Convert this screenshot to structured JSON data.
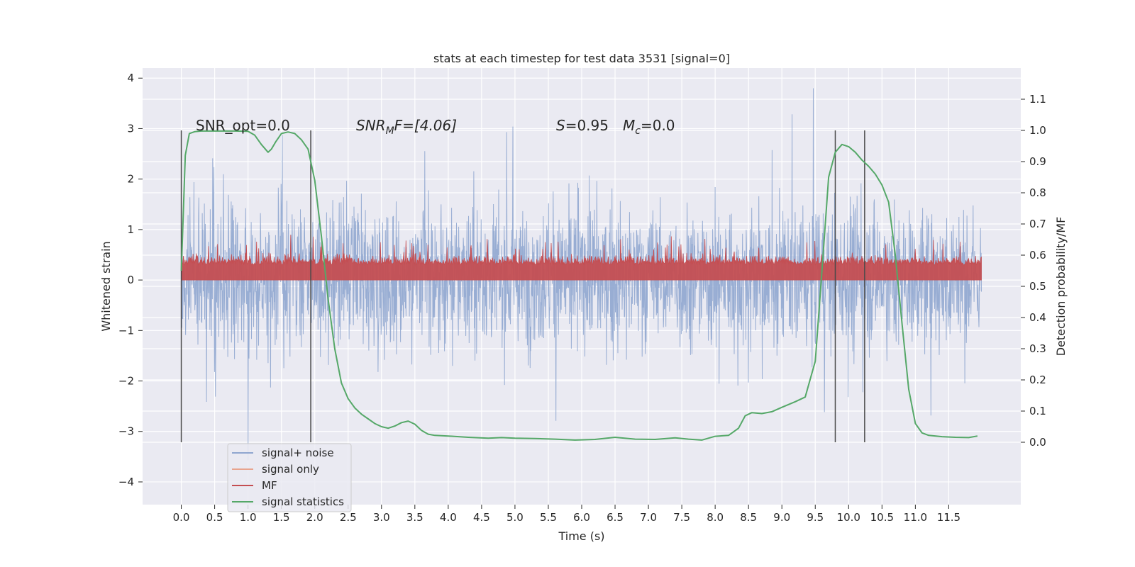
{
  "chart_data": {
    "type": "line",
    "title": "stats at each timestep for test data 3531 [signal=0]",
    "xlabel": "Time (s)",
    "ylabel": "Whitened strain",
    "ylabel_right": "Detection probability/MF",
    "xlim": [
      -0.58,
      12.58
    ],
    "ylim": [
      -4.45,
      4.2
    ],
    "ylim_right": [
      -0.2,
      1.2
    ],
    "x_ticks": [
      "0.0",
      "0.5",
      "1.0",
      "1.5",
      "2.0",
      "2.5",
      "3.0",
      "3.5",
      "4.0",
      "4.5",
      "5.0",
      "5.5",
      "6.0",
      "6.5",
      "7.0",
      "7.5",
      "8.0",
      "8.5",
      "9.0",
      "9.5",
      "10.0",
      "10.5",
      "11.0",
      "11.5"
    ],
    "y_ticks": [
      "4",
      "3",
      "2",
      "1",
      "0",
      "−1",
      "−2",
      "−3",
      "−4"
    ],
    "y_ticks_right": [
      "1.1",
      "1.0",
      "0.9",
      "0.8",
      "0.7",
      "0.6",
      "0.5",
      "0.4",
      "0.3",
      "0.2",
      "0.1",
      "0.0"
    ],
    "grid": true,
    "legend_position": "lower-left",
    "annotations": {
      "snr_opt": "SNR_opt=0.0",
      "snr_mf_prefix": "SNR",
      "snr_mf_sub": "M",
      "snr_mf_suffix": "F=[4.06]",
      "s_label": "S",
      "s_value": "=0.95",
      "mc_label": "M",
      "mc_sub": "c",
      "mc_value": "=0.0"
    },
    "vertical_markers": [
      0.0,
      1.94,
      9.8,
      10.24
    ],
    "series": [
      {
        "name": "signal+ noise",
        "color": "#8fa6cf",
        "x_range": [
          0.0,
          11.99
        ],
        "approx_range": [
          -4.1,
          3.8
        ],
        "note_values": "dense noise trace"
      },
      {
        "name": "signal only",
        "color": "#e8a48e",
        "values": []
      },
      {
        "name": "MF",
        "color": "#c44e52",
        "x_range": [
          0.0,
          11.99
        ],
        "approx_range": [
          0.0,
          0.97
        ]
      },
      {
        "name": "signal statistics",
        "color": "#55a868",
        "axis": "right",
        "x": [
          0.0,
          0.06,
          0.12,
          0.2,
          0.3,
          0.4,
          0.6,
          0.8,
          1.0,
          1.1,
          1.2,
          1.3,
          1.35,
          1.42,
          1.5,
          1.6,
          1.7,
          1.8,
          1.9,
          2.0,
          2.1,
          2.2,
          2.3,
          2.4,
          2.5,
          2.6,
          2.7,
          2.8,
          2.9,
          3.0,
          3.1,
          3.2,
          3.3,
          3.4,
          3.5,
          3.6,
          3.7,
          3.8,
          4.0,
          4.3,
          4.6,
          4.8,
          5.0,
          5.3,
          5.6,
          5.9,
          6.2,
          6.5,
          6.8,
          7.1,
          7.4,
          7.6,
          7.8,
          8.0,
          8.2,
          8.35,
          8.45,
          8.55,
          8.7,
          8.85,
          9.0,
          9.2,
          9.35,
          9.5,
          9.6,
          9.7,
          9.8,
          9.9,
          10.0,
          10.1,
          10.2,
          10.3,
          10.4,
          10.5,
          10.6,
          10.7,
          10.8,
          10.9,
          11.0,
          11.1,
          11.2,
          11.4,
          11.6,
          11.8,
          11.93
        ],
        "values": [
          0.55,
          0.92,
          0.99,
          0.996,
          0.998,
          0.998,
          0.998,
          0.998,
          0.997,
          0.985,
          0.955,
          0.93,
          0.94,
          0.965,
          0.99,
          0.995,
          0.99,
          0.97,
          0.94,
          0.84,
          0.66,
          0.46,
          0.3,
          0.19,
          0.14,
          0.11,
          0.09,
          0.075,
          0.06,
          0.05,
          0.045,
          0.052,
          0.063,
          0.068,
          0.058,
          0.038,
          0.026,
          0.022,
          0.02,
          0.016,
          0.013,
          0.015,
          0.013,
          0.012,
          0.01,
          0.007,
          0.009,
          0.016,
          0.01,
          0.009,
          0.014,
          0.01,
          0.007,
          0.019,
          0.022,
          0.045,
          0.085,
          0.095,
          0.092,
          0.098,
          0.112,
          0.13,
          0.145,
          0.26,
          0.55,
          0.85,
          0.93,
          0.955,
          0.948,
          0.93,
          0.905,
          0.885,
          0.86,
          0.825,
          0.77,
          0.6,
          0.38,
          0.17,
          0.06,
          0.03,
          0.022,
          0.018,
          0.016,
          0.015,
          0.02
        ]
      }
    ]
  }
}
